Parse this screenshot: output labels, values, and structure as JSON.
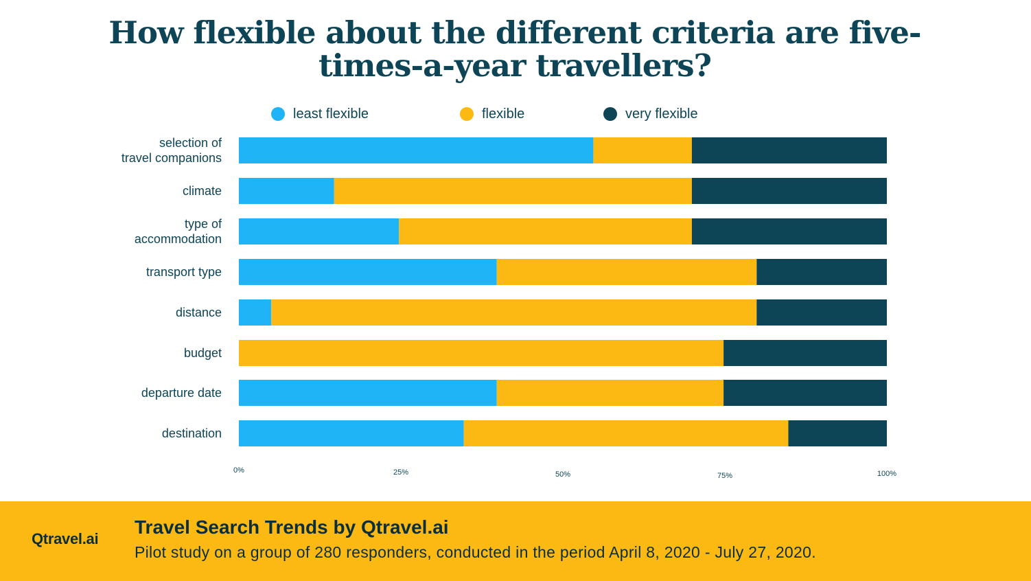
{
  "colors": {
    "least_flexible": "#1fb4f5",
    "flexible": "#fdb913",
    "very_flexible": "#0d4456",
    "title": "#0d4456",
    "footer_bg": "#fdb913"
  },
  "legend": [
    {
      "label": "least flexible",
      "color": "#1fb4f5"
    },
    {
      "label": "flexible",
      "color": "#fdb913"
    },
    {
      "label": "very flexible",
      "color": "#0d4456"
    }
  ],
  "chart_data": {
    "type": "bar",
    "orientation": "horizontal",
    "stacked": true,
    "title": "How flexible about the different criteria are five-times-a-year travellers?",
    "categories": [
      "selection of travel companions",
      "climate",
      "type of accommodation",
      "transport type",
      "distance",
      "budget",
      "departure date",
      "destination"
    ],
    "series": [
      {
        "name": "least flexible",
        "color": "#1fb4f5",
        "values": [
          54.7,
          14.7,
          24.7,
          39.8,
          5.0,
          0,
          39.8,
          34.7
        ]
      },
      {
        "name": "flexible",
        "color": "#fdb913",
        "values": [
          15.2,
          55.2,
          45.2,
          40.1,
          74.9,
          74.8,
          35.0,
          50.1
        ]
      },
      {
        "name": "very flexible",
        "color": "#0d4456",
        "values": [
          30.1,
          30.1,
          30.1,
          20.1,
          20.1,
          25.2,
          25.2,
          15.2
        ]
      }
    ],
    "xlim": [
      0,
      100
    ],
    "x_ticks": [
      "0%",
      "25%",
      "50%",
      "75%",
      "100%"
    ],
    "legend_position": "top",
    "grid": false
  },
  "footer": {
    "logo": "Qtravel.ai",
    "title": "Travel Search Trends by Qtravel.ai",
    "subtitle": "Pilot study on a group of 280 responders, conducted in the period April 8, 2020 - July 27, 2020."
  }
}
